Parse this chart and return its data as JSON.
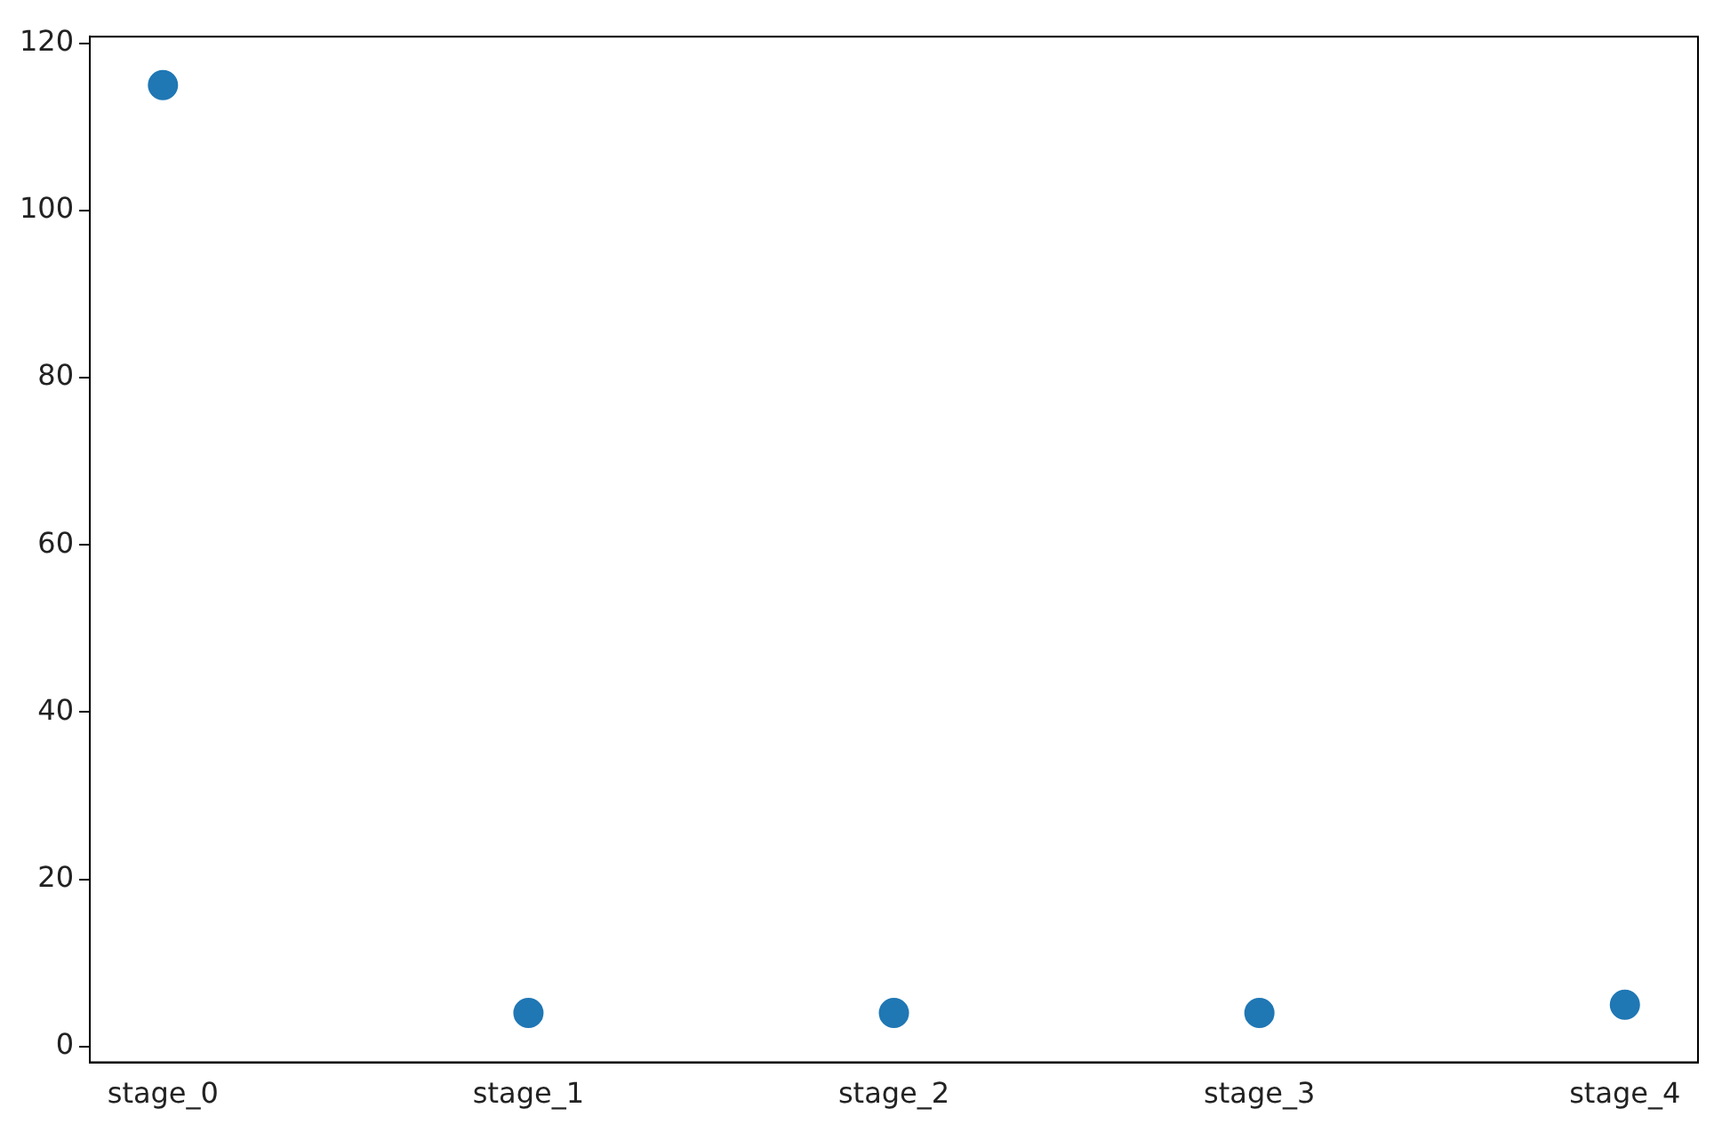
{
  "chart_data": {
    "type": "scatter",
    "categories": [
      "stage_0",
      "stage_1",
      "stage_2",
      "stage_3",
      "stage_4"
    ],
    "series": [
      {
        "color": "#1f77b4",
        "values": [
          115,
          4,
          4,
          4,
          5
        ]
      }
    ],
    "ylim": [
      -1.9,
      120.8
    ],
    "yticks": [
      0,
      20,
      40,
      60,
      80,
      100,
      120
    ],
    "grid": false,
    "legend": false,
    "marker": "circle"
  }
}
